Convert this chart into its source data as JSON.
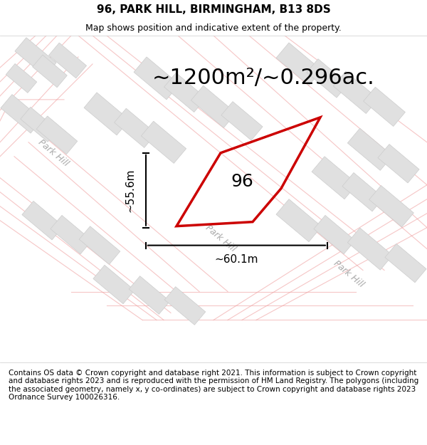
{
  "title": "96, PARK HILL, BIRMINGHAM, B13 8DS",
  "subtitle": "Map shows position and indicative extent of the property.",
  "footer": "Contains OS data © Crown copyright and database right 2021. This information is subject to Crown copyright and database rights 2023 and is reproduced with the permission of HM Land Registry. The polygons (including the associated geometry, namely x, y co-ordinates) are subject to Crown copyright and database rights 2023 Ordnance Survey 100026316.",
  "area_label": "~1200m²/~0.296ac.",
  "property_number": "96",
  "dim_vertical": "~55.6m",
  "dim_horizontal": "~60.1m",
  "road_label": "Park Hill",
  "bg_color": "#f5f5f5",
  "map_bg": "#f8f8f8",
  "block_color": "#e0e0e0",
  "block_edge": "#cccccc",
  "road_fill": "#ffffff",
  "road_line_color": "#f0a0a0",
  "property_color": "#cc0000",
  "property_fill": "none",
  "figsize": [
    6.0,
    6.25
  ],
  "dpi": 100,
  "title_fontsize": 11,
  "subtitle_fontsize": 9,
  "footer_fontsize": 7.5,
  "area_fontsize": 22,
  "number_fontsize": 18,
  "dim_fontsize": 11,
  "road_fontsize": 9
}
